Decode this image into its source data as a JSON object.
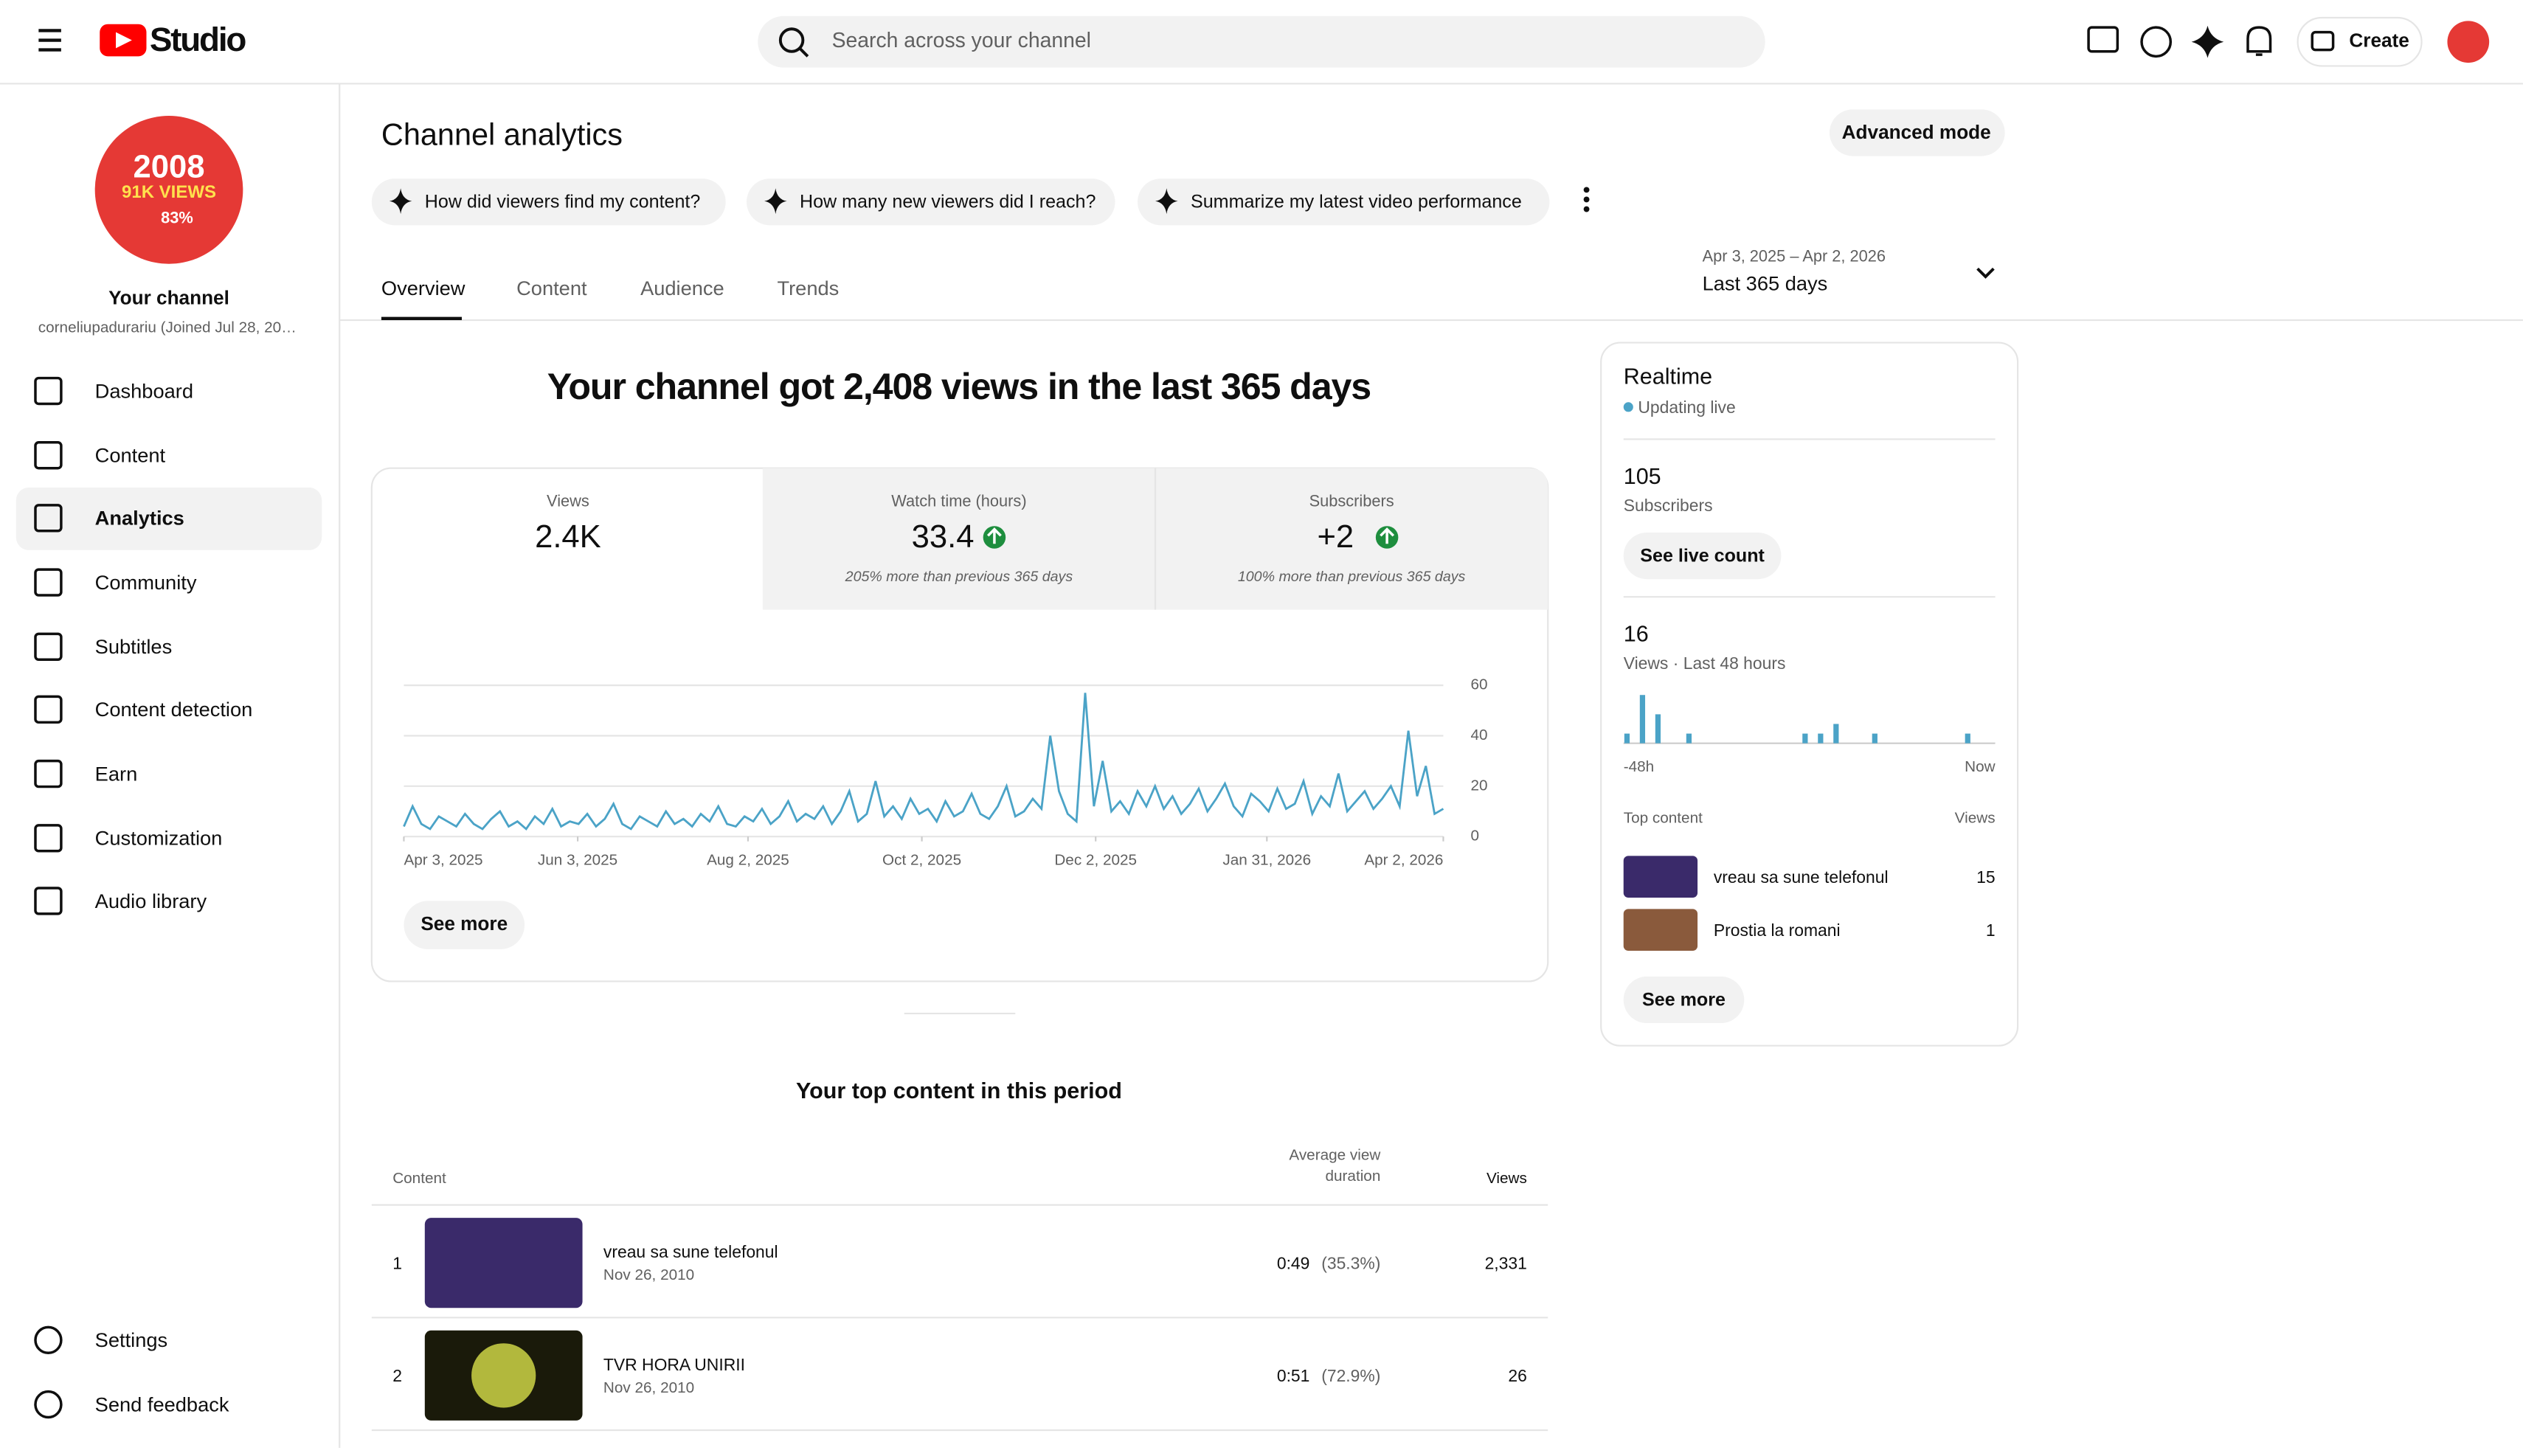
{
  "header": {
    "logo": "Studio",
    "search_placeholder": "Search across your channel",
    "create": "Create"
  },
  "sidebar": {
    "avatar": {
      "line1": "2008",
      "line2": "91K VIEWS",
      "line3": "83%"
    },
    "channel_title": "Your channel",
    "channel_handle": "corneliupadurariu (Joined Jul 28, 20…",
    "nav": [
      "Dashboard",
      "Content",
      "Analytics",
      "Community",
      "Subtitles",
      "Content detection",
      "Earn",
      "Customization",
      "Audio library"
    ],
    "footer": [
      "Settings",
      "Send feedback"
    ]
  },
  "page": {
    "title": "Channel analytics",
    "advanced": "Advanced mode",
    "prompts": [
      "How did viewers find my content?",
      "How many new viewers did I reach?",
      "Summarize my latest video performance"
    ],
    "tabs": [
      "Overview",
      "Content",
      "Audience",
      "Trends"
    ],
    "date_range": "Apr 3, 2025 – Apr 2, 2026",
    "date_label": "Last 365 days"
  },
  "summary": {
    "headline": "Your channel got 2,408 views in the last 365 days",
    "metrics": [
      {
        "label": "Views",
        "value": "2.4K"
      },
      {
        "label": "Watch time (hours)",
        "value": "33.4",
        "note": "205% more than previous 365 days"
      },
      {
        "label": "Subscribers",
        "value": "+2",
        "note": "100% more than previous 365 days"
      }
    ],
    "see_more": "See more"
  },
  "chart_data": {
    "type": "line",
    "color": "#4ba3c7",
    "values": [
      4,
      12,
      5,
      3,
      8,
      6,
      4,
      9,
      5,
      3,
      7,
      10,
      4,
      6,
      3,
      8,
      5,
      11,
      4,
      6,
      5,
      9,
      4,
      7,
      13,
      5,
      3,
      8,
      6,
      4,
      10,
      5,
      7,
      4,
      9,
      6,
      12,
      5,
      4,
      8,
      6,
      11,
      5,
      8,
      14,
      6,
      9,
      7,
      12,
      5,
      10,
      18,
      6,
      9,
      22,
      8,
      12,
      7,
      15,
      9,
      11,
      6,
      14,
      8,
      10,
      17,
      9,
      7,
      12,
      20,
      8,
      10,
      15,
      11,
      40,
      18,
      9,
      6,
      57,
      12,
      30,
      10,
      14,
      9,
      18,
      12,
      20,
      11,
      16,
      9,
      13,
      19,
      10,
      15,
      21,
      12,
      8,
      17,
      14,
      10,
      19,
      11,
      13,
      22,
      9,
      16,
      12,
      25,
      10,
      14,
      18,
      11,
      15,
      20,
      12,
      42,
      16,
      28,
      9,
      11
    ],
    "xlim": [
      0,
      119
    ],
    "xticks": [
      {
        "value": 0,
        "label": "Apr 3, 2025"
      },
      {
        "value": 19.9,
        "label": "Jun 3, 2025"
      },
      {
        "value": 39.4,
        "label": "Aug 2, 2025"
      },
      {
        "value": 59.3,
        "label": "Oct 2, 2025"
      },
      {
        "value": 79.2,
        "label": "Dec 2, 2025"
      },
      {
        "value": 98.8,
        "label": "Jan 31, 2026"
      },
      {
        "value": 119,
        "label": "Apr 2, 2026"
      }
    ],
    "ylim": [
      0,
      60
    ],
    "yticks": [
      0,
      20,
      40,
      60
    ],
    "grid": true
  },
  "realtime": {
    "title": "Realtime",
    "status": "Updating live",
    "subscribers": "105",
    "subscribers_label": "Subscribers",
    "live_count": "See live count",
    "views": "16",
    "views_label": "Views · Last 48 hours",
    "chart": {
      "type": "bar",
      "color": "#4ba3c7",
      "values": [
        1,
        0,
        5,
        0,
        3,
        0,
        0,
        0,
        1,
        0,
        0,
        0,
        0,
        0,
        0,
        0,
        0,
        0,
        0,
        0,
        0,
        0,
        0,
        1,
        0,
        1,
        0,
        2,
        0,
        0,
        0,
        0,
        1,
        0,
        0,
        0,
        0,
        0,
        0,
        0,
        0,
        0,
        0,
        0,
        1,
        0,
        0,
        0
      ],
      "start_label": "-48h",
      "end_label": "Now"
    },
    "top_header": [
      "Top content",
      "Views"
    ],
    "top": [
      {
        "title": "vreau sa sune telefonul",
        "views": "15"
      },
      {
        "title": "Prostia la romani",
        "views": "1"
      }
    ],
    "see_more": "See more"
  },
  "top_content": {
    "title": "Your top content in this period",
    "columns": [
      "Content",
      "Average view duration",
      "Views"
    ],
    "rows": [
      {
        "rank": "1",
        "title": "vreau sa sune telefonul",
        "date": "Nov 26, 2010",
        "duration": "0:49",
        "percent": "(35.3%)",
        "views": "2,331"
      },
      {
        "rank": "2",
        "title": "TVR HORA UNIRII",
        "date": "Nov 26, 2010",
        "duration": "0:51",
        "percent": "(72.9%)",
        "views": "26"
      }
    ]
  }
}
